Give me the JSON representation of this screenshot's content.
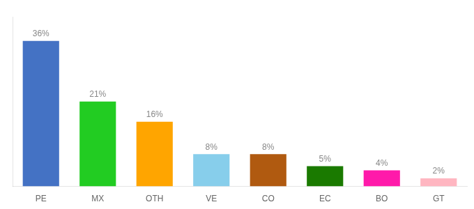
{
  "chart_data": {
    "type": "bar",
    "categories": [
      "PE",
      "MX",
      "OTH",
      "VE",
      "CO",
      "EC",
      "BO",
      "GT"
    ],
    "values": [
      36,
      21,
      16,
      8,
      8,
      5,
      4,
      2
    ],
    "value_labels": [
      "36%",
      "21%",
      "16%",
      "8%",
      "8%",
      "5%",
      "4%",
      "2%"
    ],
    "colors": [
      "#4472c4",
      "#22cc22",
      "#ffa500",
      "#87ceeb",
      "#b05a10",
      "#1a7a00",
      "#ff1aaa",
      "#ffb6c1"
    ],
    "ylim": [
      0,
      42
    ],
    "data_labels": true,
    "tick_labels": "x",
    "grid": false
  }
}
